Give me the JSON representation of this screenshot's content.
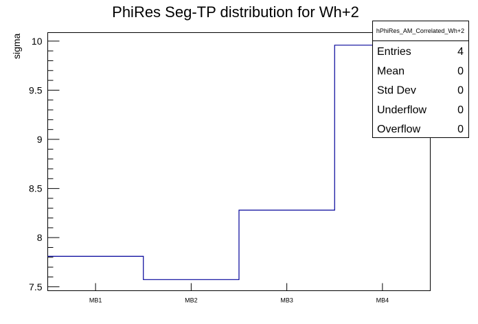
{
  "chart_data": {
    "type": "bar",
    "style": "step-histogram",
    "title": "PhiRes Seg-TP distribution for Wh+2",
    "xlabel": "",
    "ylabel": "sigma",
    "categories": [
      "MB1",
      "MB2",
      "MB3",
      "MB4"
    ],
    "values": [
      7.81,
      7.573,
      8.28,
      9.958
    ],
    "ylim": [
      7.46,
      10.086
    ],
    "yticks": [
      7.5,
      8,
      8.5,
      9,
      9.5,
      10
    ],
    "ytick_labels": [
      "7.5",
      "8",
      "8.5",
      "9",
      "9.5",
      "10"
    ],
    "grid": false,
    "line_color": "#000099",
    "legend": "none"
  },
  "stats_box": {
    "name": "hPhiRes_AM_Correlated_Wh+2",
    "placement": "top-right",
    "rows": [
      {
        "label": "Entries",
        "value": "4"
      },
      {
        "label": "Mean",
        "value": "0"
      },
      {
        "label": "Std Dev",
        "value": "0"
      },
      {
        "label": "Underflow",
        "value": "0"
      },
      {
        "label": "Overflow",
        "value": "0"
      }
    ]
  }
}
